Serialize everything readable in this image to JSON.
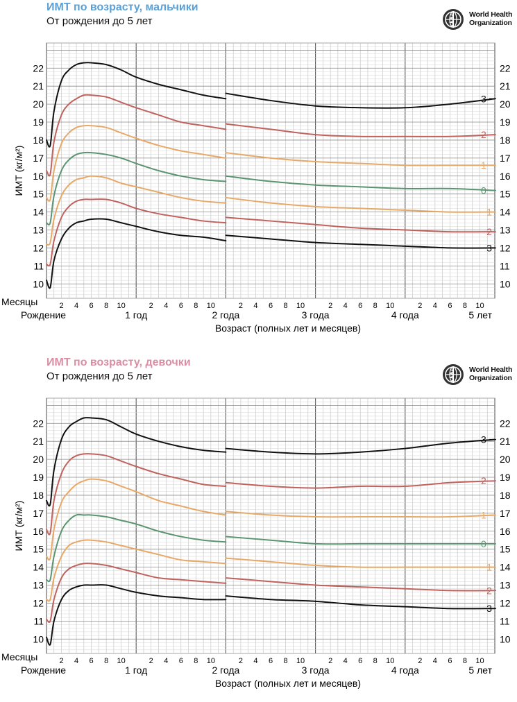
{
  "who_logo": {
    "line1": "World Health",
    "line2": "Organization",
    "icon": "who-emblem-icon"
  },
  "chart_data": [
    {
      "type": "line",
      "title": "ИМТ по возрасту, мальчики",
      "subtitle": "От рождения до 5 лет",
      "title_color": "#5aa0d6",
      "ylabel": "ИМТ (кг/м²)",
      "xlabel": "Возраст (полных лет и месяцев)",
      "months_label": "Месяцы",
      "x_unit": "months",
      "xlim": [
        0,
        60
      ],
      "ylim": [
        9.2,
        23.4
      ],
      "yticks": [
        10,
        11,
        12,
        13,
        14,
        15,
        16,
        17,
        18,
        19,
        20,
        21,
        22
      ],
      "year_labels": [
        {
          "month": 0,
          "label": "Рождение"
        },
        {
          "month": 12,
          "label": "1 год"
        },
        {
          "month": 24,
          "label": "2 года"
        },
        {
          "month": 36,
          "label": "3 года"
        },
        {
          "month": 48,
          "label": "4 года"
        },
        {
          "month": 60,
          "label": "5 лет"
        }
      ],
      "month_tick_labels": [
        "2",
        "4",
        "6",
        "8",
        "10"
      ],
      "break_at_month": 24,
      "series": [
        {
          "name": "3",
          "color": "#111111",
          "x": [
            0,
            0.5,
            1,
            2,
            3,
            4,
            5,
            6,
            8,
            10,
            12,
            15,
            18,
            21,
            24,
            24,
            30,
            36,
            42,
            48,
            54,
            60
          ],
          "y": [
            18.0,
            17.7,
            19.6,
            21.3,
            21.9,
            22.2,
            22.3,
            22.3,
            22.2,
            21.9,
            21.5,
            21.1,
            20.8,
            20.5,
            20.3,
            20.6,
            20.2,
            19.9,
            19.8,
            19.8,
            20.0,
            20.3
          ]
        },
        {
          "name": "2",
          "color": "#c0625e",
          "x": [
            0,
            0.5,
            1,
            2,
            3,
            4,
            5,
            6,
            8,
            10,
            12,
            15,
            18,
            21,
            24,
            24,
            30,
            36,
            42,
            48,
            54,
            60
          ],
          "y": [
            16.3,
            16.1,
            17.9,
            19.4,
            20.0,
            20.3,
            20.5,
            20.5,
            20.4,
            20.1,
            19.8,
            19.4,
            19.0,
            18.8,
            18.6,
            18.9,
            18.6,
            18.3,
            18.2,
            18.2,
            18.2,
            18.3
          ]
        },
        {
          "name": "1",
          "color": "#e8a866",
          "x": [
            0,
            0.5,
            1,
            2,
            3,
            4,
            5,
            6,
            8,
            10,
            12,
            15,
            18,
            21,
            24,
            24,
            30,
            36,
            42,
            48,
            54,
            60
          ],
          "y": [
            14.8,
            14.7,
            16.3,
            17.8,
            18.4,
            18.7,
            18.8,
            18.8,
            18.7,
            18.4,
            18.1,
            17.7,
            17.4,
            17.2,
            17.0,
            17.3,
            17.0,
            16.8,
            16.7,
            16.6,
            16.6,
            16.6
          ]
        },
        {
          "name": "0",
          "color": "#5a9470",
          "x": [
            0,
            0.5,
            1,
            2,
            3,
            4,
            5,
            6,
            8,
            10,
            12,
            15,
            18,
            21,
            24,
            24,
            30,
            36,
            42,
            48,
            54,
            60
          ],
          "y": [
            13.4,
            13.4,
            14.9,
            16.3,
            16.9,
            17.2,
            17.3,
            17.3,
            17.2,
            17.0,
            16.7,
            16.3,
            16.0,
            15.8,
            15.7,
            16.0,
            15.7,
            15.5,
            15.4,
            15.3,
            15.3,
            15.2
          ]
        },
        {
          "name": "-1",
          "color": "#e8a866",
          "x": [
            0,
            0.5,
            1,
            2,
            3,
            4,
            5,
            6,
            8,
            10,
            12,
            15,
            18,
            21,
            24,
            24,
            30,
            36,
            42,
            48,
            54,
            60
          ],
          "y": [
            12.2,
            12.3,
            13.6,
            14.9,
            15.5,
            15.8,
            15.9,
            16.0,
            15.9,
            15.6,
            15.4,
            15.1,
            14.8,
            14.6,
            14.5,
            14.8,
            14.5,
            14.3,
            14.2,
            14.1,
            14.0,
            14.0
          ]
        },
        {
          "name": "-2",
          "color": "#c0625e",
          "x": [
            0,
            0.5,
            1,
            2,
            3,
            4,
            5,
            6,
            8,
            10,
            12,
            15,
            18,
            21,
            24,
            24,
            30,
            36,
            42,
            48,
            54,
            60
          ],
          "y": [
            11.1,
            11.1,
            12.4,
            13.7,
            14.3,
            14.6,
            14.7,
            14.7,
            14.7,
            14.5,
            14.2,
            13.9,
            13.7,
            13.5,
            13.4,
            13.7,
            13.5,
            13.3,
            13.1,
            13.0,
            12.9,
            12.9
          ]
        },
        {
          "name": "-3",
          "color": "#111111",
          "x": [
            0,
            0.5,
            1,
            2,
            3,
            4,
            5,
            6,
            8,
            10,
            12,
            15,
            18,
            21,
            24,
            24,
            30,
            36,
            42,
            48,
            54,
            60
          ],
          "y": [
            10.2,
            9.8,
            11.3,
            12.5,
            13.1,
            13.4,
            13.5,
            13.6,
            13.6,
            13.4,
            13.2,
            12.9,
            12.7,
            12.6,
            12.4,
            12.7,
            12.5,
            12.3,
            12.2,
            12.1,
            12.0,
            12.0
          ]
        }
      ],
      "series_labels": [
        "3",
        "2",
        "1",
        "0",
        "-1",
        "-2",
        "-3"
      ]
    },
    {
      "type": "line",
      "title": "ИМТ по возрасту, девочки",
      "subtitle": "От рождения до 5 лет",
      "title_color": "#d98ea3",
      "ylabel": "ИМТ (кг/м²)",
      "xlabel": "Возраст (полных лет и месяцев)",
      "months_label": "Месяцы",
      "x_unit": "months",
      "xlim": [
        0,
        60
      ],
      "ylim": [
        9.2,
        23.4
      ],
      "yticks": [
        10,
        11,
        12,
        13,
        14,
        15,
        16,
        17,
        18,
        19,
        20,
        21,
        22
      ],
      "year_labels": [
        {
          "month": 0,
          "label": "Рождение"
        },
        {
          "month": 12,
          "label": "1 год"
        },
        {
          "month": 24,
          "label": "2 года"
        },
        {
          "month": 36,
          "label": "3 года"
        },
        {
          "month": 48,
          "label": "4 года"
        },
        {
          "month": 60,
          "label": "5 лет"
        }
      ],
      "month_tick_labels": [
        "2",
        "4",
        "6",
        "8",
        "10"
      ],
      "break_at_month": 24,
      "series": [
        {
          "name": "3",
          "color": "#111111",
          "x": [
            0,
            0.5,
            1,
            2,
            3,
            4,
            5,
            6,
            8,
            10,
            12,
            15,
            18,
            21,
            24,
            24,
            30,
            36,
            42,
            48,
            54,
            60
          ],
          "y": [
            17.7,
            17.5,
            19.4,
            21.1,
            21.8,
            22.1,
            22.3,
            22.3,
            22.2,
            21.8,
            21.4,
            21.0,
            20.7,
            20.5,
            20.4,
            20.6,
            20.4,
            20.3,
            20.4,
            20.6,
            20.9,
            21.1
          ]
        },
        {
          "name": "2",
          "color": "#c0625e",
          "x": [
            0,
            0.5,
            1,
            2,
            3,
            4,
            5,
            6,
            8,
            10,
            12,
            15,
            18,
            21,
            24,
            24,
            30,
            36,
            42,
            48,
            54,
            60
          ],
          "y": [
            16.1,
            15.9,
            17.7,
            19.2,
            19.9,
            20.2,
            20.3,
            20.3,
            20.2,
            19.9,
            19.6,
            19.2,
            18.9,
            18.6,
            18.5,
            18.7,
            18.5,
            18.4,
            18.5,
            18.5,
            18.7,
            18.8
          ]
        },
        {
          "name": "1",
          "color": "#e8a866",
          "x": [
            0,
            0.5,
            1,
            2,
            3,
            4,
            5,
            6,
            8,
            10,
            12,
            15,
            18,
            21,
            24,
            24,
            30,
            36,
            42,
            48,
            54,
            60
          ],
          "y": [
            14.6,
            14.5,
            16.1,
            17.6,
            18.2,
            18.6,
            18.8,
            18.9,
            18.8,
            18.5,
            18.2,
            17.7,
            17.4,
            17.1,
            16.9,
            17.1,
            16.9,
            16.8,
            16.8,
            16.8,
            16.8,
            16.9
          ]
        },
        {
          "name": "0",
          "color": "#5a9470",
          "x": [
            0,
            0.5,
            1,
            2,
            3,
            4,
            5,
            6,
            8,
            10,
            12,
            15,
            18,
            21,
            24,
            24,
            30,
            36,
            42,
            48,
            54,
            60
          ],
          "y": [
            13.3,
            13.3,
            14.6,
            16.0,
            16.6,
            16.9,
            16.9,
            16.9,
            16.8,
            16.6,
            16.4,
            16.0,
            15.7,
            15.5,
            15.4,
            15.7,
            15.5,
            15.3,
            15.3,
            15.3,
            15.3,
            15.3
          ]
        },
        {
          "name": "-1",
          "color": "#e8a866",
          "x": [
            0,
            0.5,
            1,
            2,
            3,
            4,
            5,
            6,
            8,
            10,
            12,
            15,
            18,
            21,
            24,
            24,
            30,
            36,
            42,
            48,
            54,
            60
          ],
          "y": [
            12.2,
            12.2,
            13.4,
            14.6,
            15.2,
            15.4,
            15.5,
            15.5,
            15.4,
            15.2,
            15.0,
            14.7,
            14.4,
            14.3,
            14.2,
            14.5,
            14.3,
            14.1,
            14.0,
            14.0,
            14.0,
            14.0
          ]
        },
        {
          "name": "-2",
          "color": "#c0625e",
          "x": [
            0,
            0.5,
            1,
            2,
            3,
            4,
            5,
            6,
            8,
            10,
            12,
            15,
            18,
            21,
            24,
            24,
            30,
            36,
            42,
            48,
            54,
            60
          ],
          "y": [
            11.1,
            11.0,
            12.2,
            13.4,
            13.9,
            14.1,
            14.2,
            14.2,
            14.1,
            13.9,
            13.7,
            13.4,
            13.3,
            13.2,
            13.1,
            13.4,
            13.2,
            13.0,
            12.9,
            12.8,
            12.7,
            12.7
          ]
        },
        {
          "name": "-3",
          "color": "#111111",
          "x": [
            0,
            0.5,
            1,
            2,
            3,
            4,
            5,
            6,
            8,
            10,
            12,
            15,
            18,
            21,
            24,
            24,
            30,
            36,
            42,
            48,
            54,
            60
          ],
          "y": [
            10.1,
            9.7,
            11.0,
            12.2,
            12.7,
            12.9,
            13.0,
            13.0,
            13.0,
            12.8,
            12.6,
            12.4,
            12.3,
            12.2,
            12.2,
            12.4,
            12.2,
            12.1,
            11.9,
            11.8,
            11.7,
            11.7
          ]
        }
      ],
      "series_labels": [
        "3",
        "2",
        "1",
        "0",
        "-1",
        "-2",
        "-3"
      ]
    }
  ]
}
